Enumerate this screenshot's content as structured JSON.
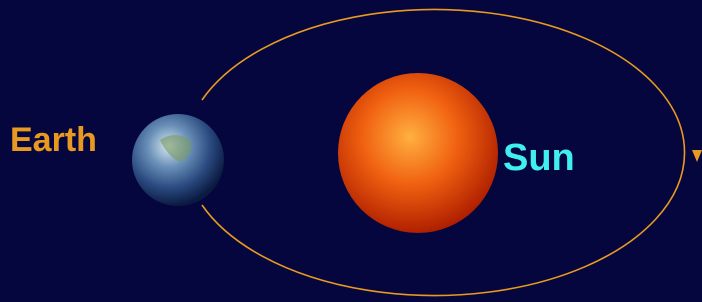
{
  "labels": {
    "earth": "Earth",
    "sun": "Sun"
  }
}
